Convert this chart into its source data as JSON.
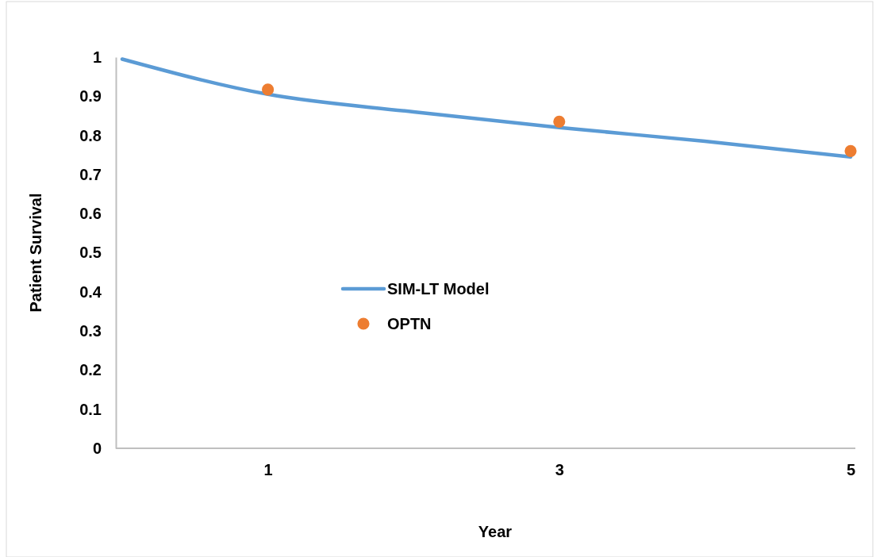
{
  "chart_data": {
    "type": "line",
    "xlabel": "Year",
    "ylabel": "Patient Survival",
    "xlim": [
      0,
      5
    ],
    "xticks": [
      1,
      3,
      5
    ],
    "ylim": [
      0,
      1
    ],
    "yticks": [
      0,
      0.1,
      0.2,
      0.3,
      0.4,
      0.5,
      0.6,
      0.7,
      0.8,
      0.9,
      1
    ],
    "grid": false,
    "legend": "center",
    "series": [
      {
        "name": "SIM-LT Model",
        "type": "line",
        "color": "#5b9bd5",
        "marker": "none",
        "line_style": "solid",
        "x": [
          0,
          1,
          2,
          3,
          4,
          5
        ],
        "values": [
          0.995,
          0.905,
          0.86,
          0.82,
          0.785,
          0.745
        ]
      },
      {
        "name": "OPTN",
        "type": "scatter",
        "color": "#ed7d31",
        "marker": "circle",
        "x": [
          1,
          3,
          5
        ],
        "values": [
          0.917,
          0.835,
          0.76
        ]
      }
    ]
  }
}
